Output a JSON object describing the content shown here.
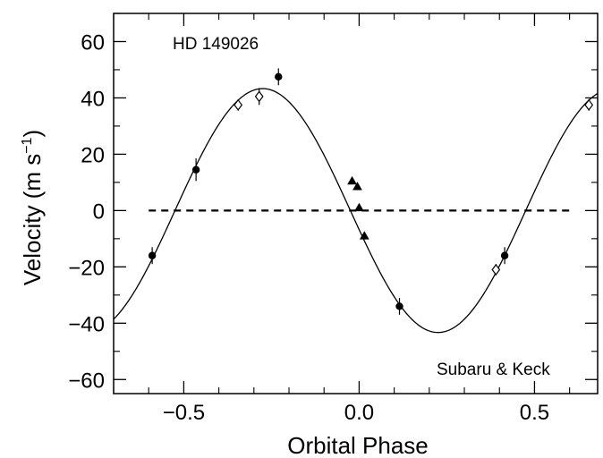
{
  "chart_data": {
    "type": "scatter",
    "title": "",
    "annotations": {
      "star": "HD 149026",
      "source": "Subaru & Keck"
    },
    "xlabel": "Orbital Phase",
    "ylabel_main": "Velocity (m s",
    "ylabel_sup": "−1",
    "ylabel_close": ")",
    "xlim": [
      -0.7,
      0.68
    ],
    "ylim": [
      -65,
      70
    ],
    "x_ticks": [
      {
        "value": -0.5,
        "label": "−0.5"
      },
      {
        "value": 0.0,
        "label": "0.0"
      },
      {
        "value": 0.5,
        "label": "0.5"
      }
    ],
    "y_ticks": [
      {
        "value": 60,
        "label": "60"
      },
      {
        "value": 40,
        "label": "40"
      },
      {
        "value": 20,
        "label": "20"
      },
      {
        "value": 0,
        "label": "0"
      },
      {
        "value": -20,
        "label": "−20"
      },
      {
        "value": -40,
        "label": "−40"
      },
      {
        "value": -60,
        "label": "−60"
      }
    ],
    "grid": false,
    "model": {
      "amplitude": 43.3,
      "period": 1.0,
      "phase_zero_crossing": -0.025,
      "color": "#000000"
    },
    "reference_line": {
      "y": 0,
      "x_start": -0.6,
      "x_end": 0.6,
      "style": "dashed"
    },
    "series": [
      {
        "marker": "filled-circle",
        "points": [
          {
            "x": -0.59,
            "y": -16,
            "err": 3
          },
          {
            "x": -0.465,
            "y": 14.5,
            "err": 4
          },
          {
            "x": -0.23,
            "y": 47.5,
            "err": 3
          },
          {
            "x": 0.115,
            "y": -34,
            "err": 3
          },
          {
            "x": 0.415,
            "y": -16,
            "err": 3
          }
        ]
      },
      {
        "marker": "open-diamond",
        "points": [
          {
            "x": -0.345,
            "y": 37.5,
            "err": 2
          },
          {
            "x": -0.285,
            "y": 40.5,
            "err": 3
          },
          {
            "x": 0.39,
            "y": -21,
            "err": 2
          },
          {
            "x": 0.655,
            "y": 37.5,
            "err": 2
          }
        ]
      },
      {
        "marker": "triangle",
        "points": [
          {
            "x": -0.02,
            "y": 10.5,
            "err": 1
          },
          {
            "x": -0.005,
            "y": 8.5,
            "err": 1
          },
          {
            "x": 0.0,
            "y": 1,
            "err": 1
          },
          {
            "x": 0.015,
            "y": -9,
            "err": 1
          }
        ]
      }
    ]
  }
}
